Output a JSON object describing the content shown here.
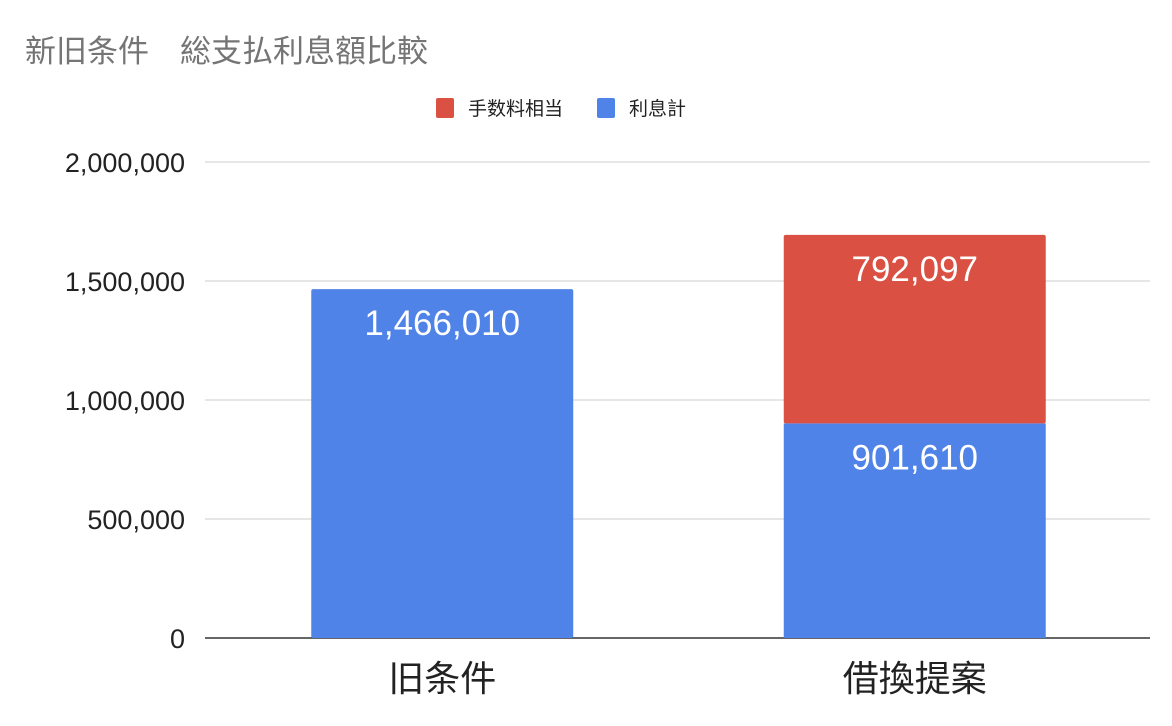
{
  "chart_data": {
    "type": "bar",
    "stacked": true,
    "title": "新旧条件　総支払利息額比較",
    "categories": [
      "旧条件",
      "借換提案"
    ],
    "series": [
      {
        "name": "利息計",
        "color": "#5083e8",
        "values": [
          1466010,
          901610
        ]
      },
      {
        "name": "手数料相当",
        "color": "#da5042",
        "values": [
          null,
          792097
        ]
      }
    ],
    "data_labels": [
      [
        "1,466,010",
        "901,610"
      ],
      [
        null,
        "792,097"
      ]
    ],
    "legend_order": [
      1,
      0
    ],
    "legend_position": "top",
    "ylim": [
      0,
      2000000
    ],
    "yticks": [
      0,
      500000,
      1000000,
      1500000,
      2000000
    ],
    "ytick_labels": [
      "0",
      "500,000",
      "1,000,000",
      "1,500,000",
      "2,000,000"
    ],
    "grid": true,
    "xlabel": "",
    "ylabel": ""
  }
}
